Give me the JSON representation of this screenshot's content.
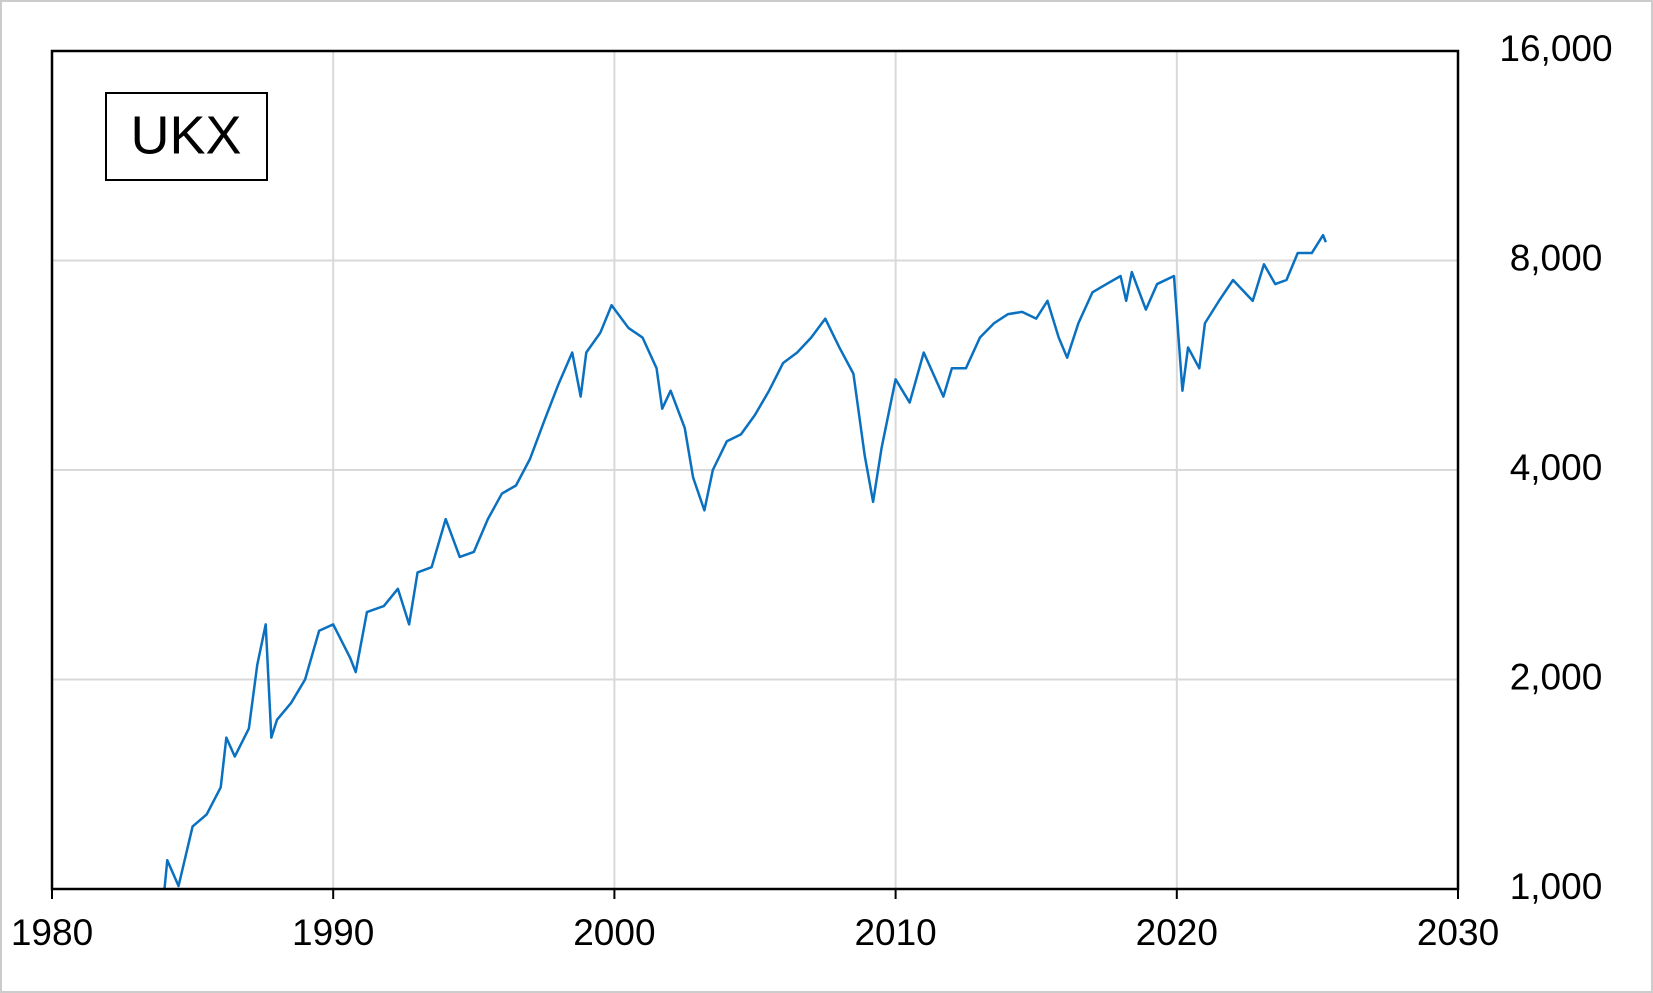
{
  "chart_data": {
    "type": "line",
    "yscale": "log",
    "grid": true,
    "legend_position": "upper left",
    "xlim": [
      1980,
      2030
    ],
    "xticks": [
      1980,
      1990,
      2000,
      2010,
      2020,
      2030
    ],
    "ylim": [
      1000,
      16000
    ],
    "yticks": [
      {
        "value": 1000,
        "label": "1,000"
      },
      {
        "value": 2000,
        "label": "2,000"
      },
      {
        "value": 4000,
        "label": "4,000"
      },
      {
        "value": 8000,
        "label": "8,000"
      },
      {
        "value": 16000,
        "label": "16,000"
      }
    ],
    "x": [
      1984.0,
      1984.1,
      1984.5,
      1985.0,
      1985.5,
      1986.0,
      1986.2,
      1986.5,
      1987.0,
      1987.3,
      1987.6,
      1987.8,
      1988.0,
      1988.5,
      1989.0,
      1989.5,
      1990.0,
      1990.6,
      1990.8,
      1991.2,
      1991.8,
      1992.3,
      1992.7,
      1993.0,
      1993.5,
      1994.0,
      1994.5,
      1995.0,
      1995.5,
      1996.0,
      1996.5,
      1997.0,
      1997.5,
      1998.0,
      1998.5,
      1998.8,
      1999.0,
      1999.5,
      1999.9,
      2000.5,
      2001.0,
      2001.5,
      2001.7,
      2002.0,
      2002.5,
      2002.8,
      2003.2,
      2003.5,
      2004.0,
      2004.5,
      2005.0,
      2005.5,
      2006.0,
      2006.5,
      2007.0,
      2007.5,
      2008.0,
      2008.5,
      2008.9,
      2009.2,
      2009.5,
      2010.0,
      2010.5,
      2011.0,
      2011.7,
      2012.0,
      2012.5,
      2013.0,
      2013.5,
      2014.0,
      2014.5,
      2015.0,
      2015.4,
      2015.8,
      2016.1,
      2016.5,
      2017.0,
      2017.5,
      2018.0,
      2018.2,
      2018.4,
      2018.9,
      2019.3,
      2019.9,
      2020.2,
      2020.4,
      2020.8,
      2021.0,
      2021.5,
      2022.0,
      2022.7,
      2023.1,
      2023.5,
      2023.9,
      2024.3,
      2024.8,
      2025.2,
      2025.3
    ],
    "series": [
      {
        "name": "UKX",
        "color": "#0a70c0",
        "values": [
          1000,
          1100,
          1010,
          1230,
          1280,
          1400,
          1650,
          1550,
          1700,
          2100,
          2400,
          1650,
          1750,
          1850,
          2000,
          2350,
          2400,
          2150,
          2050,
          2500,
          2550,
          2700,
          2400,
          2850,
          2900,
          3400,
          3000,
          3050,
          3400,
          3700,
          3800,
          4150,
          4700,
          5300,
          5900,
          5100,
          5900,
          6300,
          6900,
          6400,
          6200,
          5600,
          4900,
          5200,
          4600,
          3900,
          3500,
          4000,
          4400,
          4500,
          4800,
          5200,
          5700,
          5900,
          6200,
          6600,
          6000,
          5500,
          4200,
          3600,
          4300,
          5400,
          5000,
          5900,
          5100,
          5600,
          5600,
          6200,
          6500,
          6700,
          6750,
          6600,
          7000,
          6200,
          5800,
          6500,
          7200,
          7400,
          7600,
          7000,
          7700,
          6800,
          7400,
          7600,
          5200,
          6000,
          5600,
          6500,
          7000,
          7500,
          7000,
          7900,
          7400,
          7500,
          8200,
          8200,
          8700,
          8500
        ]
      }
    ]
  }
}
